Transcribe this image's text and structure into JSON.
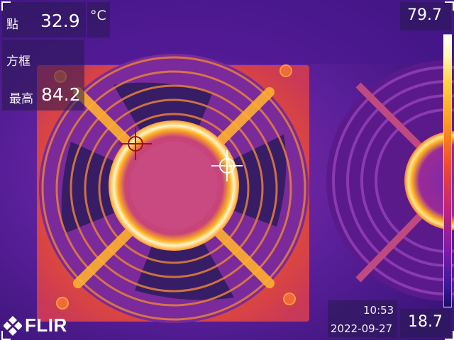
{
  "measurements": {
    "spot": {
      "label": "點",
      "value": "32.9"
    },
    "unit": "°C",
    "box": {
      "label": "方框",
      "max_label": "最高",
      "max_value": "84.2"
    }
  },
  "scale": {
    "max": "79.7",
    "min": "18.7"
  },
  "timestamp": {
    "time": "10:53",
    "date": "2022-09-27"
  },
  "brand": {
    "name": "FLIR",
    "logo_icon": "flir-logo-icon"
  },
  "colors": {
    "cold": "#3a0f6e",
    "warm": "#e8582a",
    "hot": "#fff4b0"
  }
}
